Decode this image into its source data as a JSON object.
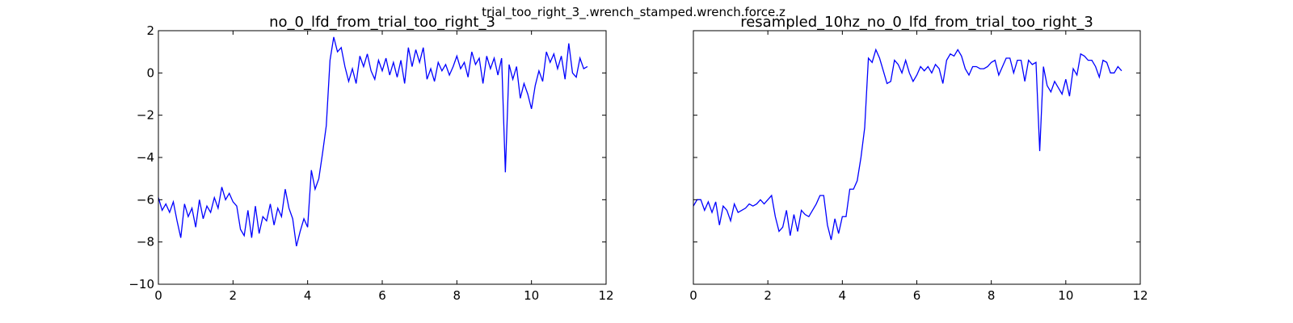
{
  "title": "trial_too_right_3_.wrench_stamped.wrench.force.z",
  "chart_data": [
    {
      "type": "line",
      "title": "no_0_lfd_from_trial_too_right_3",
      "x": [
        0,
        0.1,
        0.2,
        0.3,
        0.4,
        0.5,
        0.6,
        0.7,
        0.8,
        0.9,
        1.0,
        1.1,
        1.2,
        1.3,
        1.4,
        1.5,
        1.6,
        1.7,
        1.8,
        1.9,
        2.0,
        2.1,
        2.2,
        2.3,
        2.4,
        2.5,
        2.6,
        2.7,
        2.8,
        2.9,
        3.0,
        3.1,
        3.2,
        3.3,
        3.4,
        3.5,
        3.6,
        3.7,
        3.8,
        3.9,
        4.0,
        4.1,
        4.2,
        4.3,
        4.4,
        4.5,
        4.6,
        4.7,
        4.8,
        4.9,
        5.0,
        5.1,
        5.2,
        5.3,
        5.4,
        5.5,
        5.6,
        5.7,
        5.8,
        5.9,
        6.0,
        6.1,
        6.2,
        6.3,
        6.4,
        6.5,
        6.6,
        6.7,
        6.8,
        6.9,
        7.0,
        7.1,
        7.2,
        7.3,
        7.4,
        7.5,
        7.6,
        7.7,
        7.8,
        7.9,
        8.0,
        8.1,
        8.2,
        8.3,
        8.4,
        8.5,
        8.6,
        8.7,
        8.8,
        8.9,
        9.0,
        9.1,
        9.2,
        9.3,
        9.4,
        9.5,
        9.6,
        9.7,
        9.8,
        9.9,
        10.0,
        10.1,
        10.2,
        10.3,
        10.4,
        10.5,
        10.6,
        10.7,
        10.8,
        10.9,
        11.0,
        11.1,
        11.2,
        11.3,
        11.4,
        11.5
      ],
      "series": [
        {
          "color": "#0000ff",
          "values": [
            -5.9,
            -6.5,
            -6.2,
            -6.6,
            -6.1,
            -7.0,
            -7.8,
            -6.2,
            -6.8,
            -6.4,
            -7.3,
            -6.0,
            -6.9,
            -6.3,
            -6.6,
            -5.9,
            -6.4,
            -5.4,
            -6.0,
            -5.7,
            -6.1,
            -6.3,
            -7.4,
            -7.7,
            -6.5,
            -7.8,
            -6.3,
            -7.6,
            -6.8,
            -7.0,
            -6.2,
            -7.2,
            -6.4,
            -6.8,
            -5.5,
            -6.4,
            -6.9,
            -8.2,
            -7.5,
            -6.9,
            -7.3,
            -4.6,
            -5.5,
            -5.0,
            -3.8,
            -2.5,
            0.6,
            1.7,
            1.0,
            1.2,
            0.3,
            -0.4,
            0.2,
            -0.5,
            0.8,
            0.3,
            0.9,
            0.1,
            -0.3,
            0.6,
            0.1,
            0.7,
            -0.1,
            0.5,
            -0.2,
            0.6,
            -0.5,
            1.2,
            0.3,
            1.1,
            0.5,
            1.2,
            -0.3,
            0.2,
            -0.4,
            0.5,
            0.1,
            0.4,
            -0.1,
            0.3,
            0.8,
            0.2,
            0.5,
            -0.2,
            1.0,
            0.4,
            0.7,
            -0.5,
            0.8,
            0.2,
            0.7,
            -0.1,
            0.7,
            -4.7,
            0.4,
            -0.3,
            0.3,
            -1.2,
            -0.5,
            -1.0,
            -1.7,
            -0.6,
            0.1,
            -0.4,
            1.0,
            0.5,
            0.9,
            0.2,
            0.8,
            -0.3,
            1.4,
            0.0,
            -0.2,
            0.7,
            0.2,
            0.3
          ]
        }
      ],
      "xlim": [
        0,
        12
      ],
      "xticks": [
        0,
        2,
        4,
        6,
        8,
        10,
        12
      ],
      "ylim": [
        -10,
        2
      ],
      "yticks": [
        {
          "value": -10,
          "label": "−10"
        },
        {
          "value": -8,
          "label": "−8"
        },
        {
          "value": -6,
          "label": "−6"
        },
        {
          "value": -4,
          "label": "−4"
        },
        {
          "value": -2,
          "label": "−2"
        },
        0,
        2
      ],
      "ytick_labels": true
    },
    {
      "type": "line",
      "title": "resampled_10hz_no_0_lfd_from_trial_too_right_3",
      "x": [
        0,
        0.1,
        0.2,
        0.3,
        0.4,
        0.5,
        0.6,
        0.7,
        0.8,
        0.9,
        1.0,
        1.1,
        1.2,
        1.3,
        1.4,
        1.5,
        1.6,
        1.7,
        1.8,
        1.9,
        2.0,
        2.1,
        2.2,
        2.3,
        2.4,
        2.5,
        2.6,
        2.7,
        2.8,
        2.9,
        3.0,
        3.1,
        3.2,
        3.3,
        3.4,
        3.5,
        3.6,
        3.7,
        3.8,
        3.9,
        4.0,
        4.1,
        4.2,
        4.3,
        4.4,
        4.5,
        4.6,
        4.7,
        4.8,
        4.9,
        5.0,
        5.1,
        5.2,
        5.3,
        5.4,
        5.5,
        5.6,
        5.7,
        5.8,
        5.9,
        6.0,
        6.1,
        6.2,
        6.3,
        6.4,
        6.5,
        6.6,
        6.7,
        6.8,
        6.9,
        7.0,
        7.1,
        7.2,
        7.3,
        7.4,
        7.5,
        7.6,
        7.7,
        7.8,
        7.9,
        8.0,
        8.1,
        8.2,
        8.3,
        8.4,
        8.5,
        8.6,
        8.7,
        8.8,
        8.9,
        9.0,
        9.1,
        9.2,
        9.3,
        9.4,
        9.5,
        9.6,
        9.7,
        9.8,
        9.9,
        10.0,
        10.1,
        10.2,
        10.3,
        10.4,
        10.5,
        10.6,
        10.7,
        10.8,
        10.9,
        11.0,
        11.1,
        11.2,
        11.3,
        11.4,
        11.5
      ],
      "series": [
        {
          "color": "#0000ff",
          "values": [
            -6.3,
            -6.0,
            -6.0,
            -6.5,
            -6.1,
            -6.6,
            -6.1,
            -7.2,
            -6.3,
            -6.5,
            -7.0,
            -6.2,
            -6.6,
            -6.5,
            -6.4,
            -6.2,
            -6.3,
            -6.2,
            -6.0,
            -6.2,
            -6.0,
            -5.8,
            -6.8,
            -7.5,
            -7.3,
            -6.5,
            -7.7,
            -6.7,
            -7.5,
            -6.5,
            -6.7,
            -6.8,
            -6.5,
            -6.2,
            -5.8,
            -5.8,
            -7.2,
            -7.9,
            -6.9,
            -7.6,
            -6.8,
            -6.8,
            -5.5,
            -5.5,
            -5.1,
            -4.0,
            -2.6,
            0.7,
            0.5,
            1.1,
            0.7,
            0.1,
            -0.5,
            -0.4,
            0.6,
            0.4,
            0.0,
            0.6,
            0.0,
            -0.4,
            -0.1,
            0.3,
            0.1,
            0.3,
            0.0,
            0.4,
            0.2,
            -0.5,
            0.6,
            0.9,
            0.8,
            1.1,
            0.8,
            0.2,
            -0.1,
            0.3,
            0.3,
            0.2,
            0.2,
            0.3,
            0.5,
            0.6,
            -0.1,
            0.3,
            0.7,
            0.7,
            0.0,
            0.6,
            0.6,
            -0.4,
            0.6,
            0.4,
            0.5,
            -3.7,
            0.3,
            -0.6,
            -0.9,
            -0.4,
            -0.7,
            -1.0,
            -0.3,
            -1.1,
            0.2,
            -0.1,
            0.9,
            0.8,
            0.6,
            0.6,
            0.3,
            -0.2,
            0.6,
            0.5,
            0.0,
            0.0,
            0.3,
            0.1
          ]
        }
      ],
      "xlim": [
        0,
        12
      ],
      "xticks": [
        0,
        2,
        4,
        6,
        8,
        10,
        12
      ],
      "ylim": [
        -10,
        2
      ],
      "yticks": [
        -10,
        -8,
        -6,
        -4,
        -2,
        0,
        2
      ],
      "ytick_labels": false
    }
  ]
}
